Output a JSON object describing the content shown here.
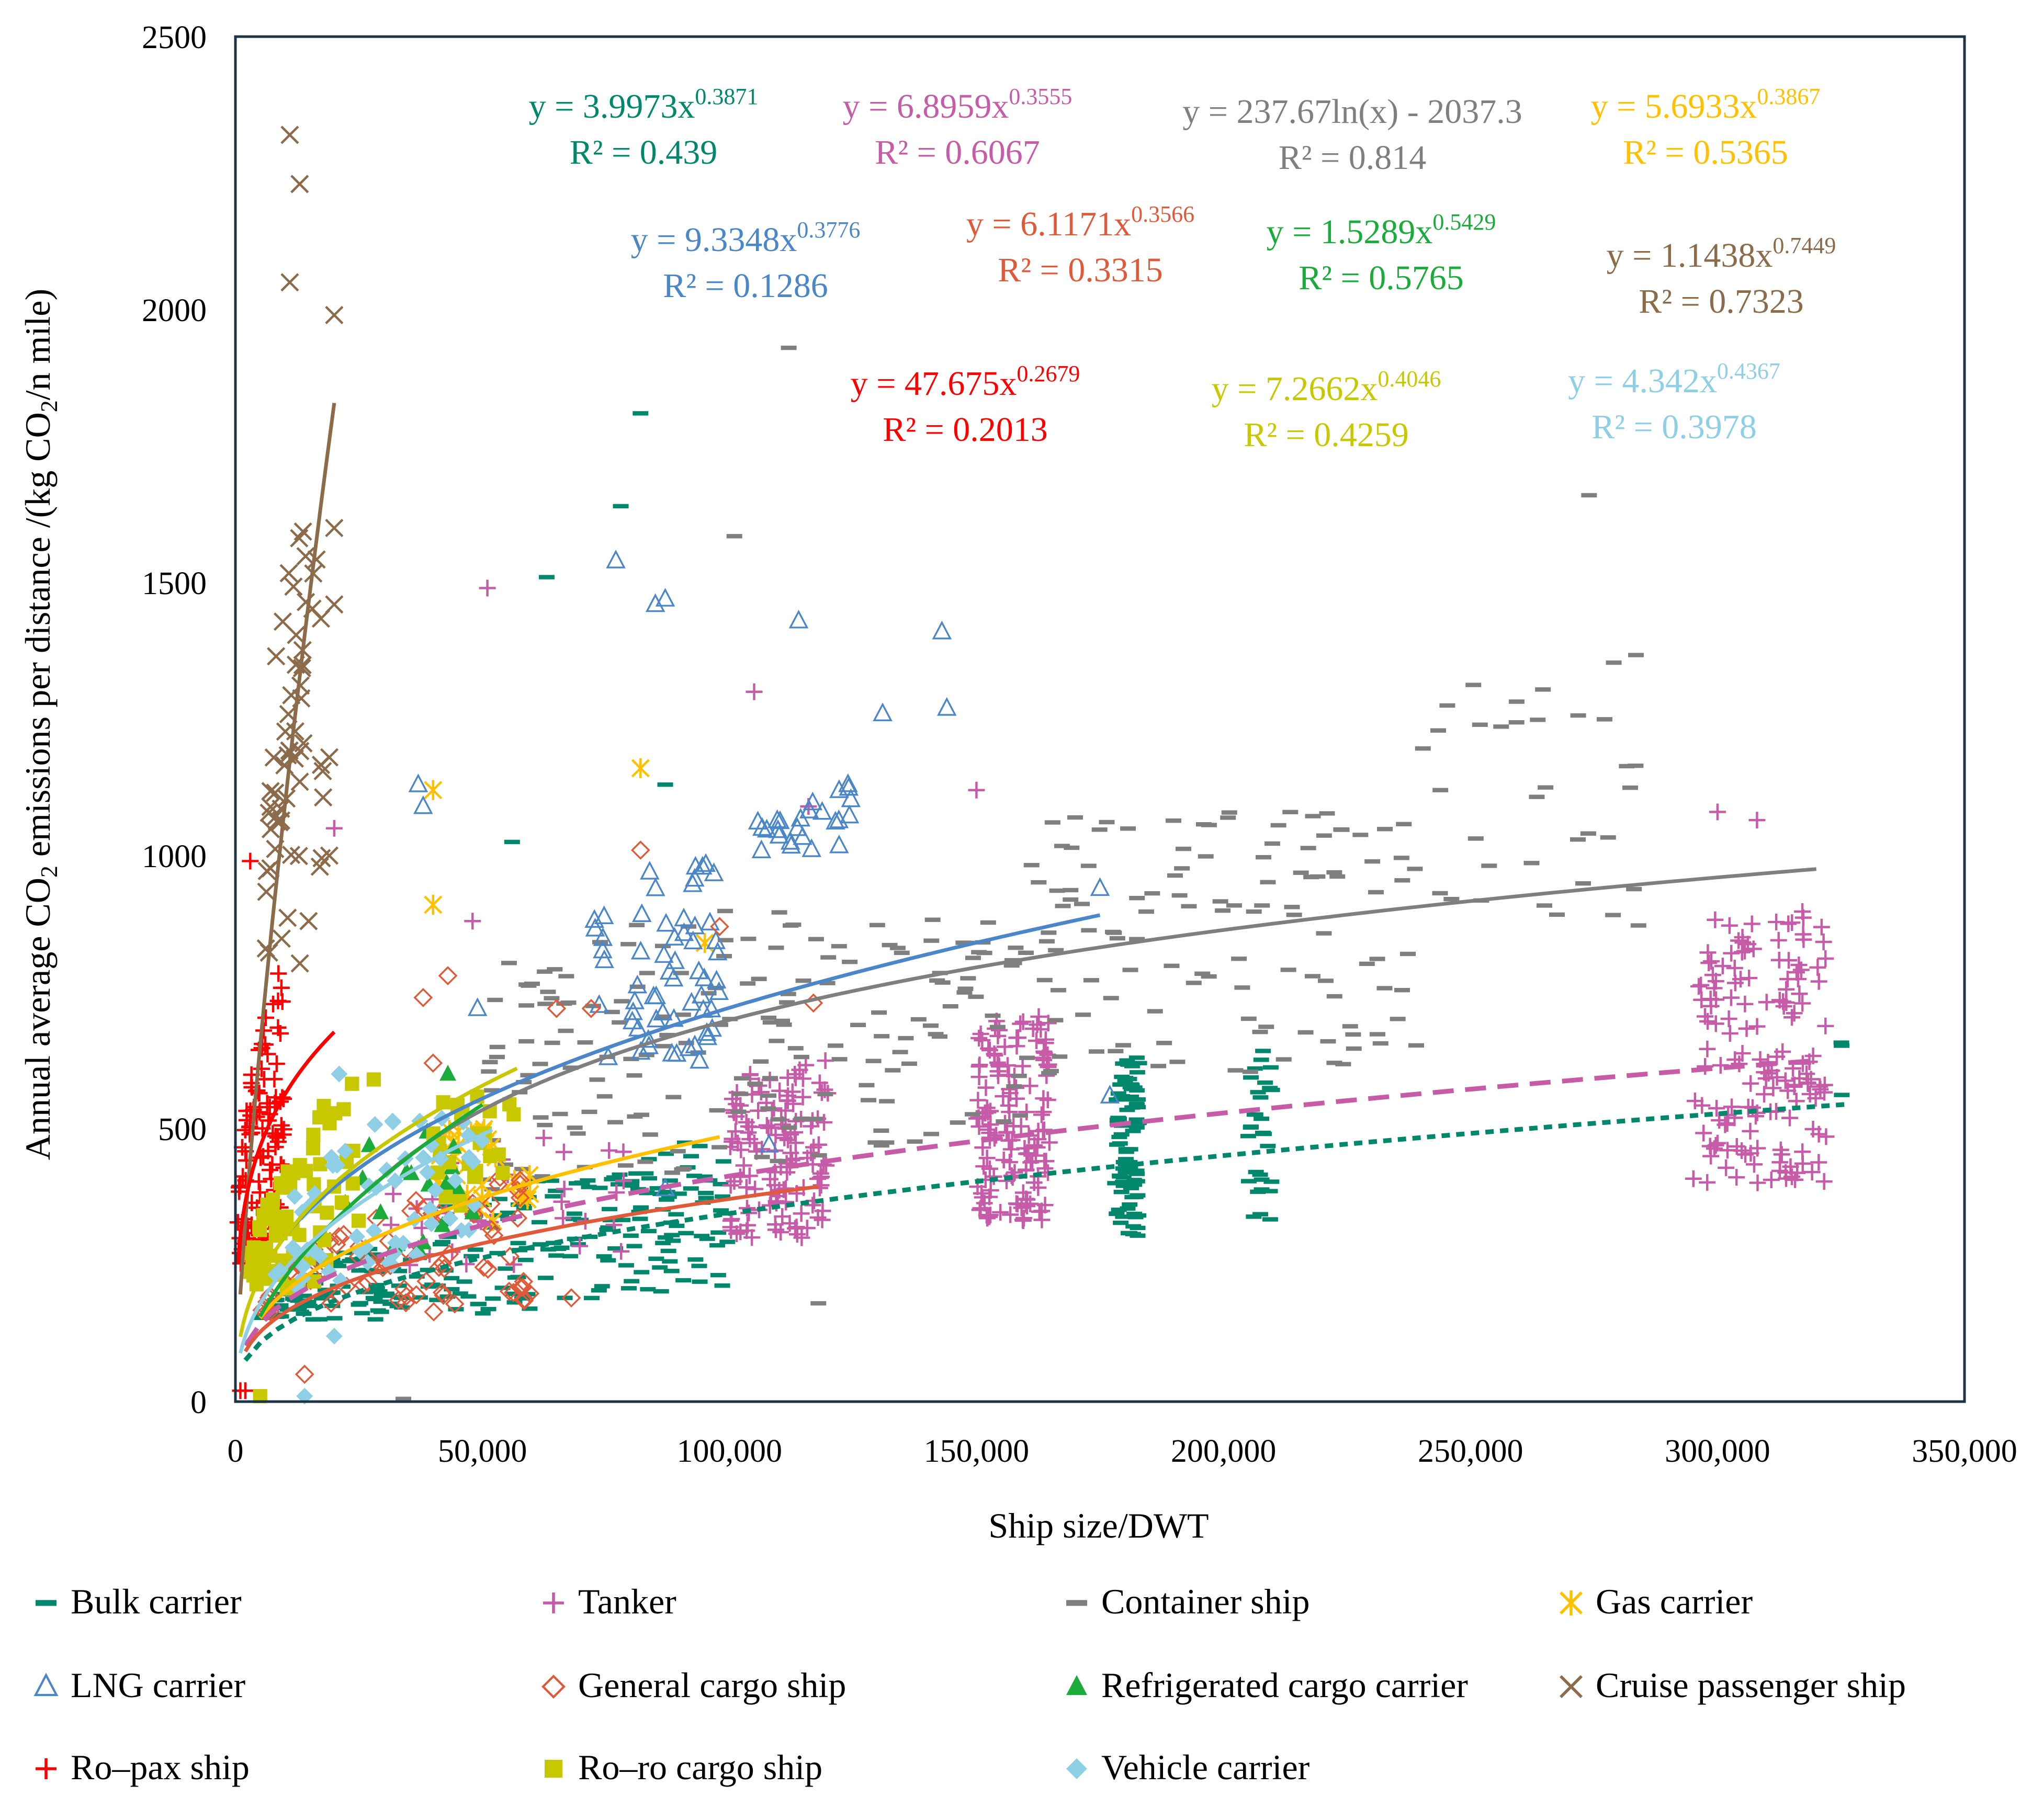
{
  "chart_data": {
    "type": "scatter",
    "xlabel": "Ship size/DWT",
    "ylabel_parts": {
      "pre": "Annual average CO",
      "sub": "2",
      "mid": " emissions per distance /(kg CO",
      "sub2": "2",
      "post": "/n mile)"
    },
    "xlim": [
      0,
      350000
    ],
    "ylim": [
      0,
      2500
    ],
    "xticks": [
      0,
      50000,
      100000,
      150000,
      200000,
      250000,
      300000,
      350000
    ],
    "xtick_labels": [
      "0",
      "50,000",
      "100,000",
      "150,000",
      "200,000",
      "250,000",
      "300,000",
      "350,000"
    ],
    "yticks": [
      0,
      500,
      1000,
      1500,
      2000,
      2500
    ],
    "ytick_labels": [
      "0",
      "500",
      "1000",
      "1500",
      "2000",
      "2500"
    ],
    "grid": false,
    "legend_position": "bottom",
    "series": [
      {
        "name": "Bulk carrier",
        "marker": "dash",
        "color": "#00876c",
        "fit": {
          "type": "power",
          "a": 3.9973,
          "b": 0.3871,
          "x_range": [
            2000,
            326000
          ],
          "style": "dotted"
        },
        "equation": {
          "pre": "y = 3.9973x",
          "sup": "0.3871",
          "r2": "R² = 0.439"
        },
        "clusters": [
          [
            5000,
            40000,
            150,
            280,
            90
          ],
          [
            40000,
            100000,
            160,
            420,
            140
          ],
          [
            70000,
            100000,
            380,
            900,
            20
          ],
          [
            178000,
            183000,
            300,
            640,
            90
          ],
          [
            205000,
            210000,
            330,
            680,
            30
          ],
          [
            325000,
            327000,
            520,
            670,
            3
          ]
        ],
        "points": [
          [
            82000,
            1810
          ],
          [
            78000,
            1640
          ],
          [
            63000,
            1510
          ],
          [
            56000,
            1025
          ],
          [
            87000,
            1130
          ]
        ]
      },
      {
        "name": "Tanker",
        "marker": "plus",
        "color": "#c65ba8",
        "fit": {
          "type": "power",
          "a": 6.8959,
          "b": 0.3555,
          "x_range": [
            2000,
            320000
          ],
          "style": "dashed"
        },
        "equation": {
          "pre": "y = 6.8959x",
          "sup": "0.3555",
          "r2": "R² = 0.6067"
        },
        "clusters": [
          [
            100000,
            120000,
            300,
            720,
            140
          ],
          [
            150000,
            165000,
            330,
            760,
            150
          ],
          [
            295000,
            322000,
            400,
            950,
            160
          ],
          [
            30000,
            80000,
            250,
            500,
            30
          ]
        ],
        "points": [
          [
            51000,
            1490
          ],
          [
            105000,
            1300
          ],
          [
            20000,
            1050
          ],
          [
            300000,
            1080
          ],
          [
            308000,
            1065
          ],
          [
            150000,
            1120
          ],
          [
            48000,
            880
          ],
          [
            116000,
            1090
          ]
        ]
      },
      {
        "name": "Container ship",
        "marker": "dash",
        "color": "#7f7f7f",
        "fit": {
          "type": "log",
          "a": 237.67,
          "b": -2037.3,
          "x_range": [
            30000,
            320000
          ],
          "style": "solid"
        },
        "equation": {
          "text": "y = 237.67ln(x) - 2037.3",
          "r2": "R² = 0.814"
        },
        "clusters": [
          [
            50000,
            160000,
            350,
            900,
            180
          ],
          [
            160000,
            240000,
            600,
            1080,
            120
          ],
          [
            240000,
            285000,
            870,
            1380,
            35
          ]
        ],
        "points": [
          [
            112000,
            1930
          ],
          [
            101000,
            1585
          ],
          [
            274000,
            1660
          ],
          [
            34000,
            5
          ],
          [
            118000,
            180
          ]
        ]
      },
      {
        "name": "Gas carrier",
        "marker": "asterisk",
        "color": "#ffc000",
        "fit": {
          "type": "power",
          "a": 5.6933,
          "b": 0.3867,
          "x_range": [
            5000,
            98000
          ],
          "style": "solid"
        },
        "equation": {
          "pre": "y = 5.6933x",
          "sup": "0.3867",
          "r2": "R² = 0.5365"
        },
        "clusters": [
          [
            40000,
            60000,
            330,
            500,
            30
          ]
        ],
        "points": [
          [
            40000,
            1120
          ],
          [
            40000,
            910
          ],
          [
            82000,
            1160
          ],
          [
            95000,
            840
          ]
        ]
      },
      {
        "name": "LNG carrier",
        "marker": "triangle-open",
        "color": "#4a86c8",
        "fit": {
          "type": "power",
          "a": 9.3348,
          "b": 0.3776,
          "x_range": [
            10000,
            175000
          ],
          "style": "solid"
        },
        "equation": {
          "pre": "y = 9.3348x",
          "sup": "0.3776",
          "r2": "R² = 0.1286"
        },
        "clusters": [
          [
            72000,
            98000,
            600,
            1050,
            60
          ],
          [
            105000,
            125000,
            1000,
            1250,
            25
          ]
        ],
        "points": [
          [
            77000,
            1540
          ],
          [
            85000,
            1460
          ],
          [
            87000,
            1470
          ],
          [
            114000,
            1430
          ],
          [
            143000,
            1410
          ],
          [
            144000,
            1270
          ],
          [
            131000,
            1260
          ],
          [
            37000,
            1130
          ],
          [
            38000,
            1090
          ],
          [
            175000,
            940
          ],
          [
            49000,
            720
          ],
          [
            108000,
            470
          ],
          [
            87000,
            390
          ],
          [
            177000,
            560
          ]
        ]
      },
      {
        "name": "General cargo ship",
        "marker": "diamond-open",
        "color": "#e05a3a",
        "fit": {
          "type": "power",
          "a": 6.1171,
          "b": 0.3566,
          "x_range": [
            2000,
            118000
          ],
          "style": "solid"
        },
        "equation": {
          "pre": "y = 6.1171x",
          "sup": "0.3566",
          "r2": "R² = 0.3315"
        },
        "clusters": [
          [
            5000,
            60000,
            150,
            420,
            80
          ]
        ],
        "points": [
          [
            82000,
            1010
          ],
          [
            43000,
            780
          ],
          [
            38000,
            740
          ],
          [
            65000,
            720
          ],
          [
            72000,
            720
          ],
          [
            98000,
            870
          ],
          [
            117000,
            730
          ],
          [
            40000,
            620
          ],
          [
            14000,
            50
          ],
          [
            68000,
            190
          ]
        ]
      },
      {
        "name": "Refrigerated cargo carrier",
        "marker": "triangle-filled",
        "color": "#1aab3a",
        "fit": {
          "type": "power",
          "a": 1.5289,
          "b": 0.5429,
          "x_range": [
            5000,
            50000
          ],
          "style": "solid"
        },
        "equation": {
          "pre": "y = 1.5289x",
          "sup": "0.5429",
          "r2": "R² = 0.5765"
        },
        "clusters": [
          [
            20000,
            48000,
            250,
            500,
            15
          ]
        ],
        "points": [
          [
            43000,
            600
          ],
          [
            45000,
            390
          ],
          [
            37000,
            280
          ]
        ]
      },
      {
        "name": "Cruise passenger ship",
        "marker": "x",
        "color": "#8b6b4a",
        "fit": {
          "type": "power",
          "a": 1.1438,
          "b": 0.7449,
          "x_range": [
            1000,
            20000
          ],
          "style": "solid"
        },
        "equation": {
          "pre": "y = 1.1438x",
          "sup": "0.7449",
          "r2": "R² = 0.7323"
        },
        "clusters": [
          [
            6000,
            18000,
            800,
            1600,
            60
          ]
        ],
        "points": [
          [
            11000,
            2320
          ],
          [
            13000,
            2230
          ],
          [
            11000,
            2050
          ],
          [
            20000,
            1990
          ],
          [
            20000,
            1600
          ],
          [
            20000,
            1460
          ],
          [
            19000,
            1180
          ],
          [
            19000,
            1000
          ]
        ]
      },
      {
        "name": "Ro–pax ship",
        "marker": "plus",
        "color": "#ff0000",
        "fit": {
          "type": "power",
          "a": 47.675,
          "b": 0.2679,
          "x_range": [
            500,
            20000
          ],
          "style": "solid"
        },
        "equation": {
          "pre": "y = 47.675x",
          "sup": "0.2679",
          "r2": "R² = 0.2013"
        },
        "clusters": [
          [
            500,
            10000,
            250,
            950,
            110
          ]
        ],
        "points": [
          [
            3000,
            990
          ],
          [
            1000,
            20
          ],
          [
            2000,
            20
          ]
        ]
      },
      {
        "name": "Ro–ro cargo ship",
        "marker": "square-filled",
        "color": "#c8c800",
        "fit": {
          "type": "power",
          "a": 7.2662,
          "b": 0.4046,
          "x_range": [
            1000,
            57000
          ],
          "style": "solid"
        },
        "equation": {
          "pre": "y = 7.2662x",
          "sup": "0.4046",
          "r2": "R² = 0.4259"
        },
        "clusters": [
          [
            2000,
            25000,
            200,
            680,
            70
          ],
          [
            40000,
            57000,
            350,
            560,
            25
          ]
        ],
        "points": [
          [
            5000,
            10
          ],
          [
            28000,
            590
          ]
        ]
      },
      {
        "name": "Vehicle carrier",
        "marker": "diamond-filled",
        "color": "#8fcfe5",
        "fit": {
          "type": "power",
          "a": 4.342,
          "b": 0.4367,
          "x_range": [
            1000,
            52000
          ],
          "style": "solid"
        },
        "equation": {
          "pre": "y = 4.342x",
          "sup": "0.4367",
          "r2": "R² = 0.3978"
        },
        "clusters": [
          [
            8000,
            50000,
            200,
            520,
            60
          ]
        ],
        "points": [
          [
            21000,
            600
          ],
          [
            14000,
            10
          ],
          [
            20000,
            120
          ]
        ]
      }
    ]
  }
}
